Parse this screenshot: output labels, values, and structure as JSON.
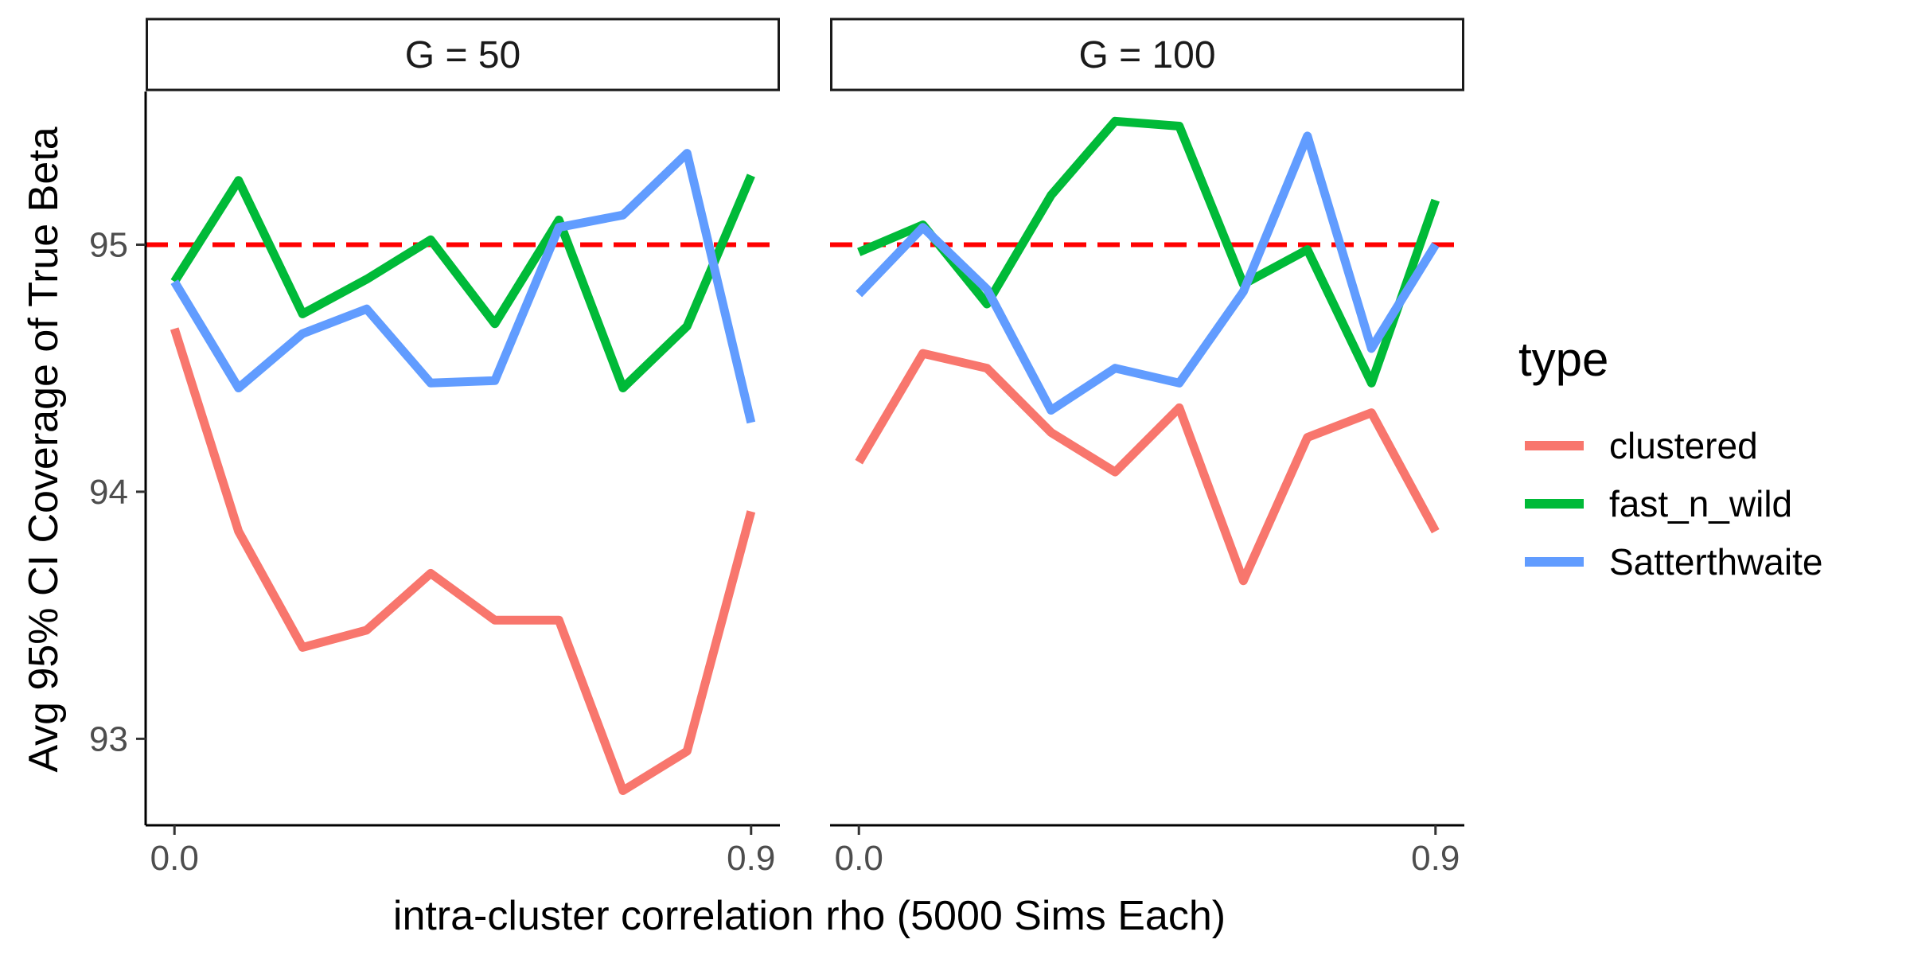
{
  "chart_data": {
    "type": "line",
    "xlabel": "intra-cluster correlation rho (5000 Sims Each)",
    "ylabel": "Avg 95% CI Coverage of True Beta",
    "x": [
      0.0,
      0.1,
      0.2,
      0.3,
      0.4,
      0.5,
      0.6,
      0.7,
      0.8,
      0.9
    ],
    "x_ticks": [
      "0.0",
      "0.9"
    ],
    "y_ticks": [
      "93",
      "94",
      "95"
    ],
    "xlim": [
      -0.045,
      0.945
    ],
    "ylim": [
      92.65,
      95.62
    ],
    "grid": false,
    "reference_line": {
      "y": 95,
      "style": "dashed",
      "color": "#FF0000"
    },
    "legend": {
      "title": "type",
      "placement": "right",
      "entries": [
        "clustered",
        "fast_n_wild",
        "Satterthwaite"
      ]
    },
    "colors": {
      "clustered": "#F8766D",
      "fast_n_wild": "#00BA38",
      "Satterthwaite": "#619CFF"
    },
    "panels": [
      {
        "title": "G = 50",
        "series": [
          {
            "name": "clustered",
            "values": [
              94.66,
              93.84,
              93.37,
              93.44,
              93.67,
              93.48,
              93.48,
              92.79,
              92.95,
              93.92
            ]
          },
          {
            "name": "fast_n_wild",
            "values": [
              94.85,
              95.26,
              94.72,
              94.86,
              95.02,
              94.68,
              95.1,
              94.42,
              94.67,
              95.28
            ]
          },
          {
            "name": "Satterthwaite",
            "values": [
              94.85,
              94.42,
              94.64,
              94.74,
              94.44,
              94.45,
              95.07,
              95.12,
              95.37,
              94.28
            ]
          }
        ]
      },
      {
        "title": "G = 100",
        "series": [
          {
            "name": "clustered",
            "values": [
              94.12,
              94.56,
              94.5,
              94.24,
              94.08,
              94.34,
              93.64,
              94.22,
              94.32,
              93.84
            ]
          },
          {
            "name": "fast_n_wild",
            "values": [
              94.97,
              95.08,
              94.76,
              95.2,
              95.5,
              95.48,
              94.84,
              94.98,
              94.44,
              95.18
            ]
          },
          {
            "name": "Satterthwaite",
            "values": [
              94.8,
              95.07,
              94.82,
              94.33,
              94.5,
              94.44,
              94.81,
              95.44,
              94.58,
              95.0
            ]
          }
        ]
      }
    ]
  }
}
